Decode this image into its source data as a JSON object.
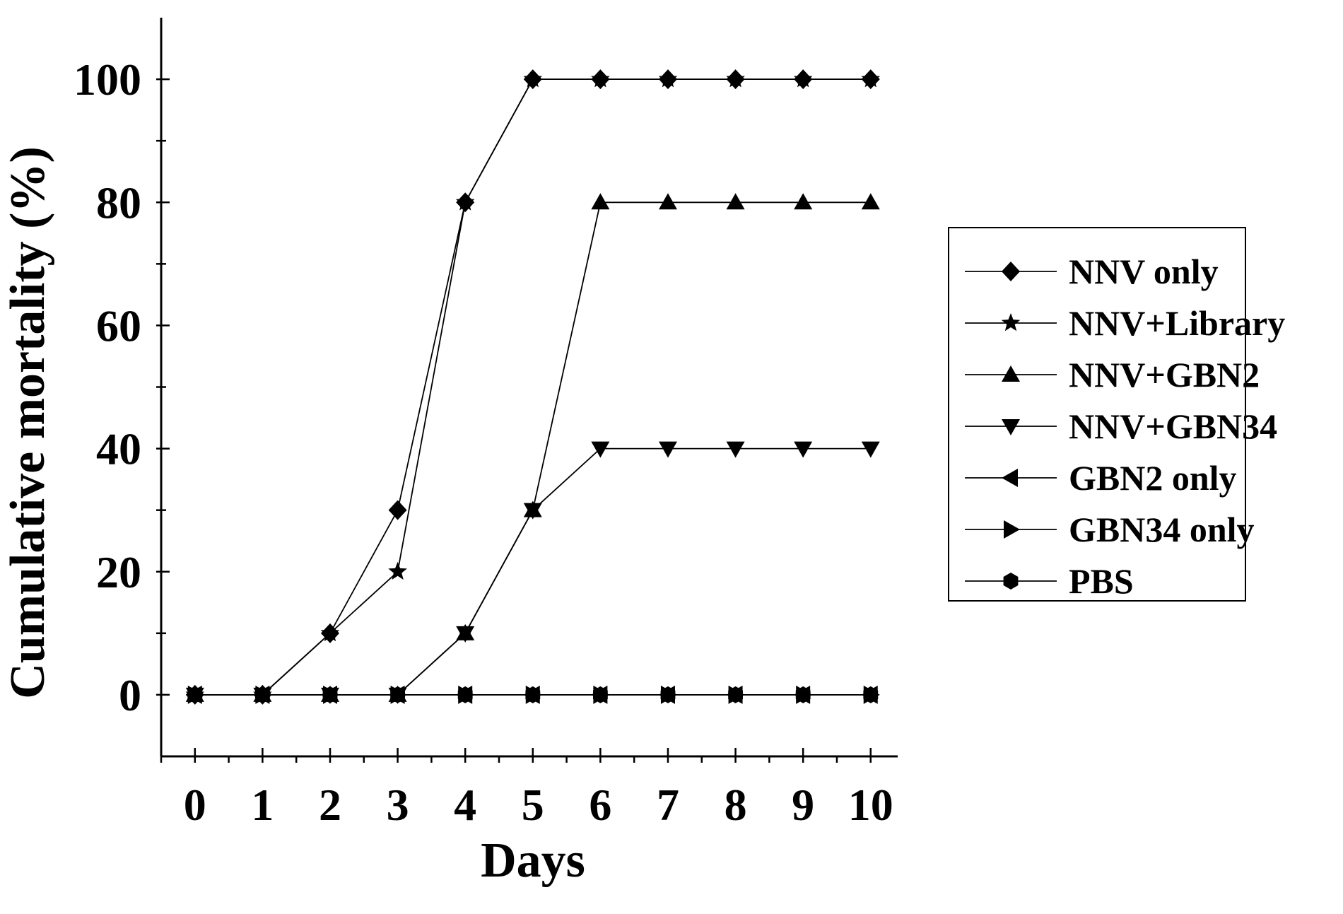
{
  "chart_data": {
    "type": "line",
    "title": "",
    "xlabel": "Days",
    "ylabel": "Cumulative mortality (%)",
    "xlim": [
      -0.5,
      10.4
    ],
    "ylim": [
      -10,
      110
    ],
    "x_ticks": [
      "0",
      "1",
      "2",
      "3",
      "4",
      "5",
      "6",
      "7",
      "8",
      "9",
      "10"
    ],
    "y_ticks": [
      "0",
      "20",
      "40",
      "60",
      "80",
      "100"
    ],
    "grid": false,
    "legend_position": "right",
    "x": [
      0,
      1,
      2,
      3,
      4,
      5,
      6,
      7,
      8,
      9,
      10
    ],
    "series": [
      {
        "name": "NNV only",
        "marker": "diamond",
        "values": [
          0,
          0,
          10,
          30,
          80,
          100,
          100,
          100,
          100,
          100,
          100
        ]
      },
      {
        "name": "NNV+Library",
        "marker": "star",
        "values": [
          0,
          0,
          10,
          20,
          80,
          100,
          100,
          100,
          100,
          100,
          100
        ]
      },
      {
        "name": "NNV+GBN2",
        "marker": "triangle-up",
        "values": [
          0,
          0,
          0,
          0,
          10,
          30,
          80,
          80,
          80,
          80,
          80
        ]
      },
      {
        "name": "NNV+GBN34",
        "marker": "triangle-down",
        "values": [
          0,
          0,
          0,
          0,
          10,
          30,
          40,
          40,
          40,
          40,
          40
        ]
      },
      {
        "name": "GBN2 only",
        "marker": "triangle-left",
        "values": [
          0,
          0,
          0,
          0,
          0,
          0,
          0,
          0,
          0,
          0,
          0
        ]
      },
      {
        "name": "GBN34 only",
        "marker": "triangle-right",
        "values": [
          0,
          0,
          0,
          0,
          0,
          0,
          0,
          0,
          0,
          0,
          0
        ]
      },
      {
        "name": "PBS",
        "marker": "hexagon",
        "values": [
          0,
          0,
          0,
          0,
          0,
          0,
          0,
          0,
          0,
          0,
          0
        ]
      }
    ],
    "colors": {
      "line": "#000000",
      "marker": "#000000"
    }
  }
}
